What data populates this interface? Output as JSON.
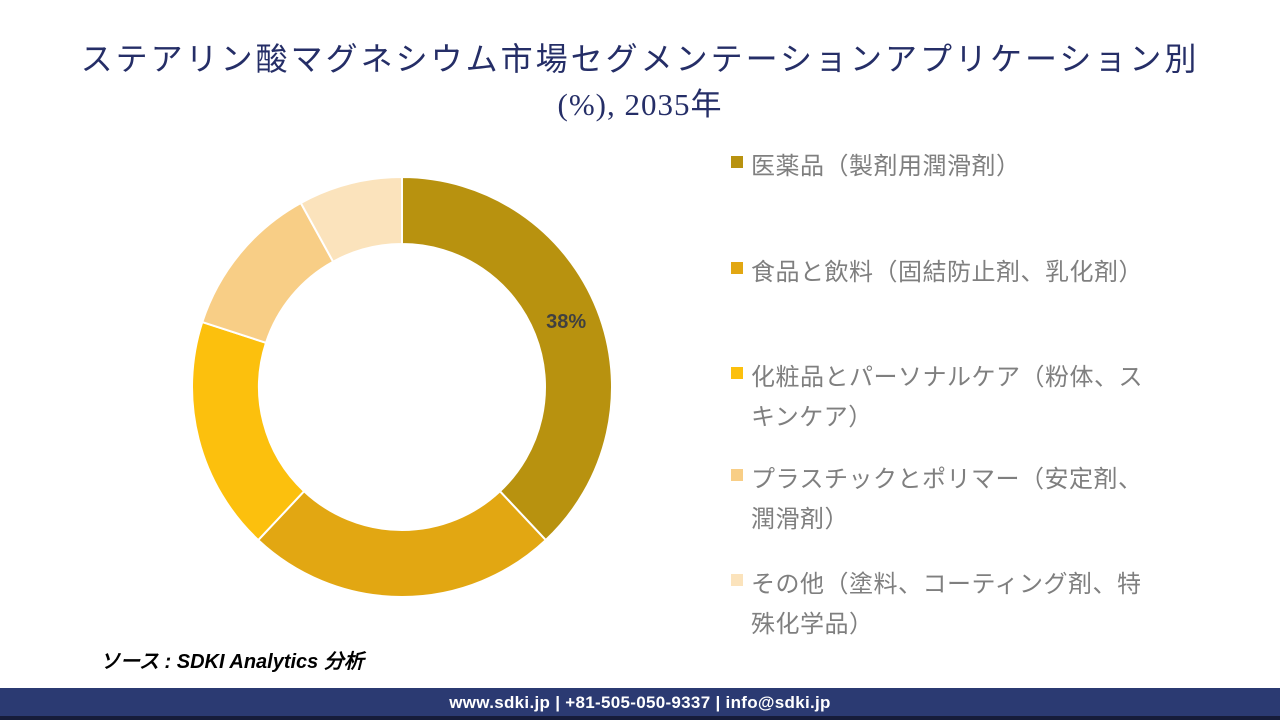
{
  "title": {
    "line1": "ステアリン酸マグネシウム市場セグメンテーションアプリケーション別",
    "line2": "(%), 2035年"
  },
  "chart_data": {
    "type": "pie",
    "subtype": "donut",
    "title": "ステアリン酸マグネシウム市場セグメンテーションアプリケーション別 (%), 2035年",
    "unit": "%",
    "direction": "clockwise",
    "start_angle_deg": 0,
    "legend_position": "right",
    "slices": [
      {
        "label": "医薬品（製剤用潤滑剤）",
        "value": 38,
        "color": "#B8920F",
        "data_label": "38%",
        "legend_lines": [
          "医薬品（製剤用潤滑剤）"
        ]
      },
      {
        "label": "食品と飲料（固結防止剤、乳化剤）",
        "value": 24,
        "color": "#E2A712",
        "data_label": "",
        "legend_lines": [
          "食品と飲料（固結防止剤、乳化剤）"
        ]
      },
      {
        "label": "化粧品とパーソナルケア（粉体、スキンケア）",
        "value": 18,
        "color": "#FCC00D",
        "data_label": "",
        "legend_lines": [
          "化粧品とパーソナルケア（粉体、ス",
          "キンケア）"
        ]
      },
      {
        "label": "プラスチックとポリマー（安定剤、潤滑剤）",
        "value": 12,
        "color": "#F8CE86",
        "data_label": "",
        "legend_lines": [
          "プラスチックとポリマー（安定剤、",
          "潤滑剤）"
        ]
      },
      {
        "label": "その他（塗料、コーティング剤、特殊化学品）",
        "value": 8,
        "color": "#FBE3BC",
        "data_label": "",
        "legend_lines": [
          "その他（塗料、コーティング剤、特",
          "殊化学品）"
        ]
      }
    ]
  },
  "data_label_color": "#404040",
  "source": {
    "text": "ソース : SDKI Analytics 分析"
  },
  "footer": {
    "text": "www.sdki.jp | +81-505-050-9337 | info@sdki.jp"
  }
}
